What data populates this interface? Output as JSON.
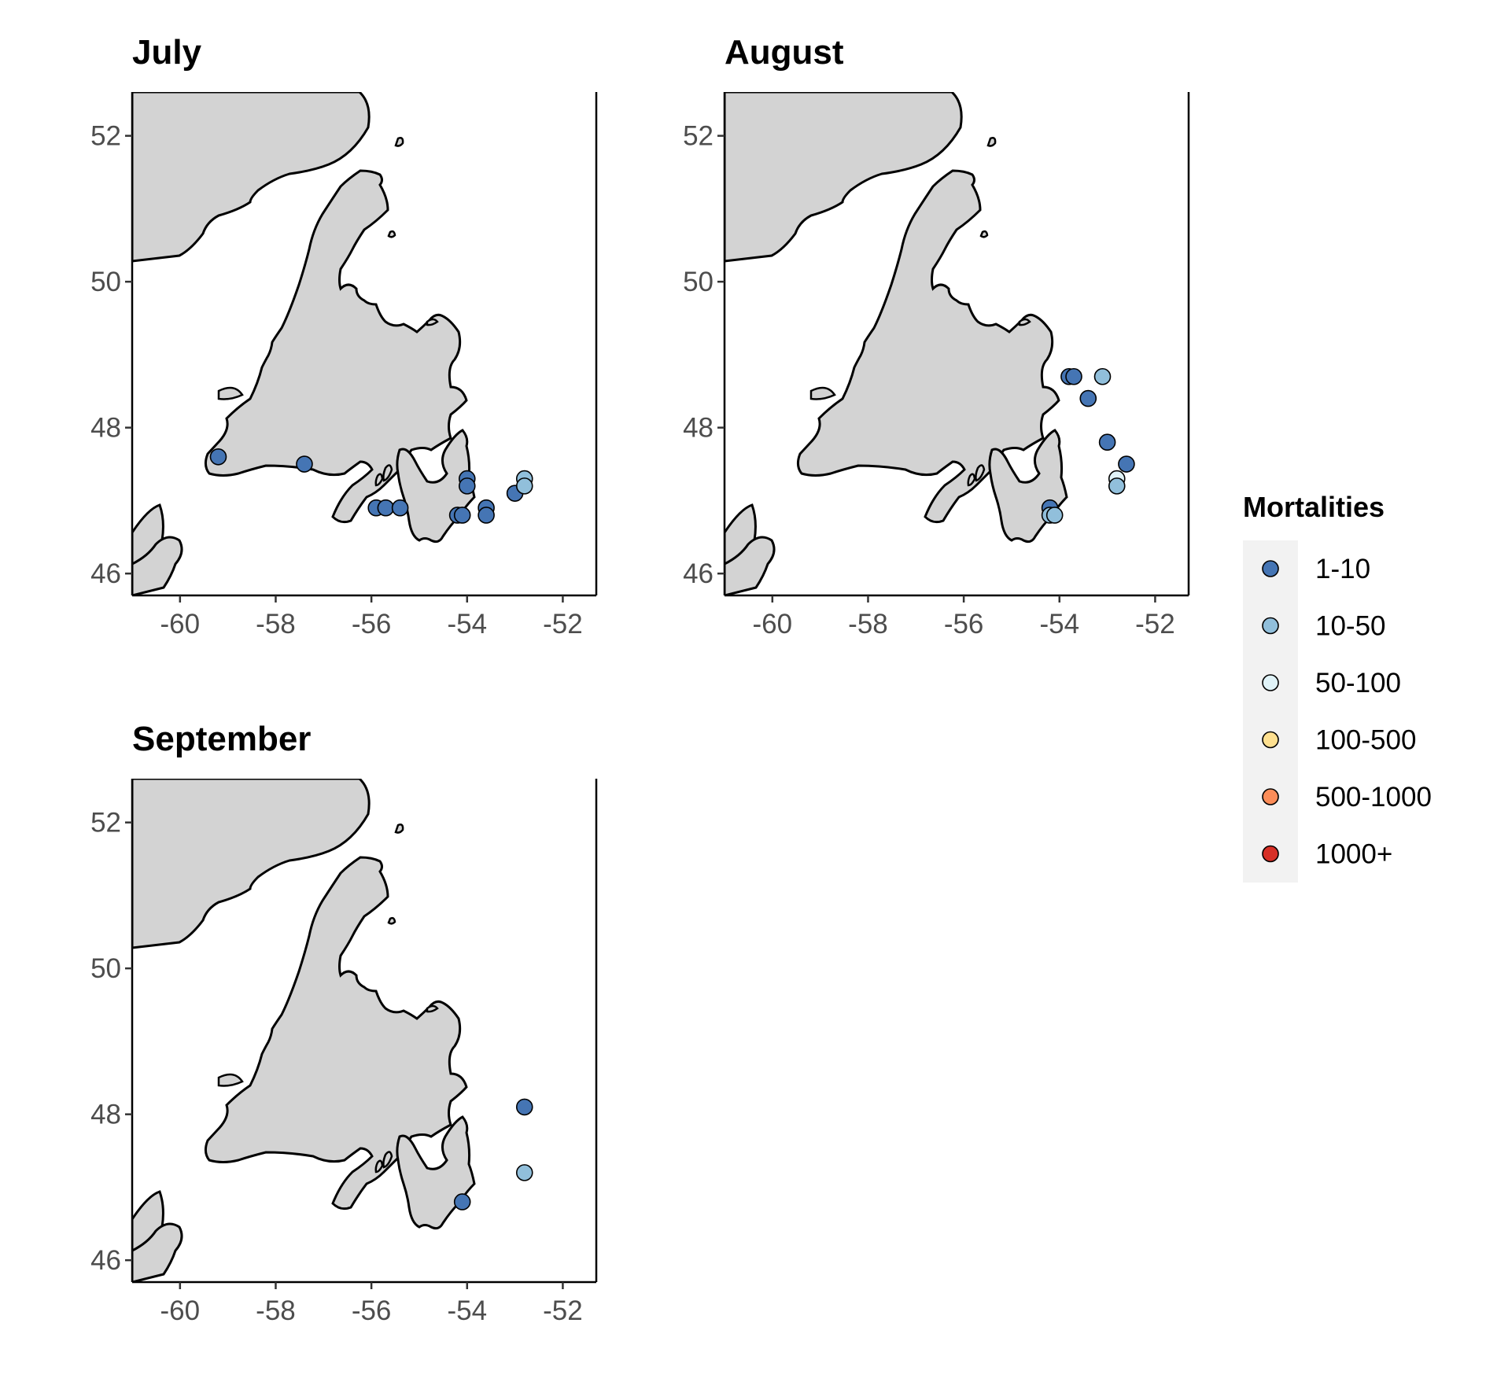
{
  "chart_data": {
    "type": "scatter",
    "color_variable": "Mortalities",
    "xlim": [
      -61,
      -51.3
    ],
    "ylim": [
      45.7,
      52.6
    ],
    "x_ticks": [
      "-60",
      "-58",
      "-56",
      "-54",
      "-52"
    ],
    "y_ticks": [
      "46",
      "48",
      "50",
      "52"
    ],
    "grid": false,
    "land_color": "#d3d3d3",
    "legend": {
      "title": "Mortalities",
      "position": "right",
      "categories": [
        {
          "label": "1-10",
          "color": "#4575b4"
        },
        {
          "label": "10-50",
          "color": "#91bfdb"
        },
        {
          "label": "50-100",
          "color": "#e0f3f8"
        },
        {
          "label": "100-500",
          "color": "#fee090"
        },
        {
          "label": "500-1000",
          "color": "#fc8d59"
        },
        {
          "label": "1000+",
          "color": "#d73027"
        }
      ]
    },
    "panels": [
      {
        "title": "July",
        "points": [
          {
            "x": -59.2,
            "y": 47.6,
            "category": "1-10"
          },
          {
            "x": -57.4,
            "y": 47.5,
            "category": "1-10"
          },
          {
            "x": -55.9,
            "y": 46.9,
            "category": "1-10"
          },
          {
            "x": -55.7,
            "y": 46.9,
            "category": "1-10"
          },
          {
            "x": -55.4,
            "y": 46.9,
            "category": "1-10"
          },
          {
            "x": -54.2,
            "y": 46.8,
            "category": "1-10"
          },
          {
            "x": -54.1,
            "y": 46.8,
            "category": "1-10"
          },
          {
            "x": -54.0,
            "y": 47.3,
            "category": "1-10"
          },
          {
            "x": -54.0,
            "y": 47.2,
            "category": "1-10"
          },
          {
            "x": -53.6,
            "y": 46.9,
            "category": "1-10"
          },
          {
            "x": -53.6,
            "y": 46.8,
            "category": "1-10"
          },
          {
            "x": -53.0,
            "y": 47.1,
            "category": "1-10"
          },
          {
            "x": -52.8,
            "y": 47.3,
            "category": "10-50"
          },
          {
            "x": -52.8,
            "y": 47.2,
            "category": "10-50"
          }
        ]
      },
      {
        "title": "August",
        "points": [
          {
            "x": -54.2,
            "y": 46.9,
            "category": "1-10"
          },
          {
            "x": -54.2,
            "y": 46.8,
            "category": "10-50"
          },
          {
            "x": -54.1,
            "y": 46.8,
            "category": "10-50"
          },
          {
            "x": -53.8,
            "y": 48.7,
            "category": "1-10"
          },
          {
            "x": -53.7,
            "y": 48.7,
            "category": "1-10"
          },
          {
            "x": -53.4,
            "y": 48.4,
            "category": "1-10"
          },
          {
            "x": -53.1,
            "y": 48.7,
            "category": "10-50"
          },
          {
            "x": -53.0,
            "y": 47.8,
            "category": "1-10"
          },
          {
            "x": -52.8,
            "y": 47.3,
            "category": "50-100"
          },
          {
            "x": -52.8,
            "y": 47.2,
            "category": "10-50"
          },
          {
            "x": -52.6,
            "y": 47.5,
            "category": "1-10"
          }
        ]
      },
      {
        "title": "September",
        "points": [
          {
            "x": -54.1,
            "y": 46.8,
            "category": "1-10"
          },
          {
            "x": -52.8,
            "y": 48.1,
            "category": "1-10"
          },
          {
            "x": -52.8,
            "y": 47.2,
            "category": "10-50"
          }
        ]
      }
    ]
  }
}
